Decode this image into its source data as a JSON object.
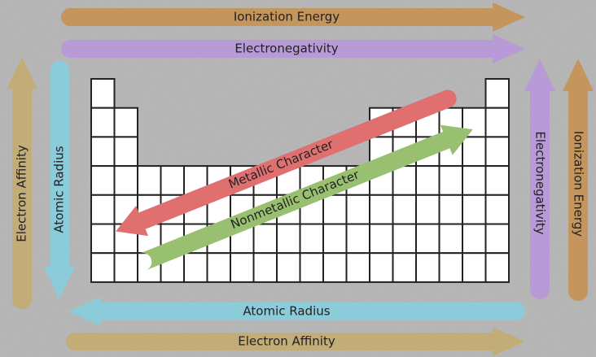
{
  "top_arrows": [
    "Ionization Energy",
    "Electronegativity"
  ],
  "left_arrows": [
    "Electron Affinity",
    "Atomic Radius"
  ],
  "right_arrows": [
    "Electronegativity",
    "Ionization Energy"
  ],
  "bottom_arrows": [
    "Atomic Radius",
    "Electron Affinity"
  ],
  "diagonal_arrows": [
    "Metallic Character",
    "Nonmetallic Character"
  ]
}
